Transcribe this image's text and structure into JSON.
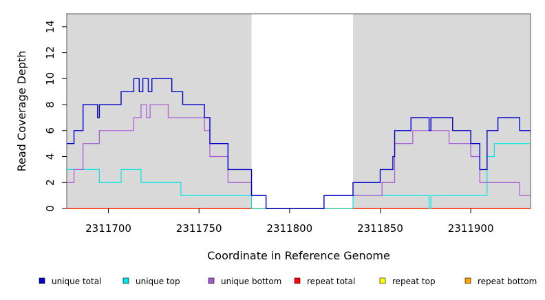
{
  "chart_data": {
    "type": "line",
    "title": "",
    "xlabel": "Coordinate in Reference Genome",
    "ylabel": "Read Coverage Depth",
    "xlim": [
      2311677,
      2311933
    ],
    "ylim": [
      0,
      15
    ],
    "x_ticks": [
      2311700,
      2311750,
      2311800,
      2311850,
      2311900
    ],
    "x_tick_labels": [
      "2311700",
      "2311750",
      "2311800",
      "2311850",
      "2311900"
    ],
    "y_ticks": [
      0,
      2,
      4,
      6,
      8,
      10,
      12,
      14
    ],
    "y_tick_labels": [
      "0",
      "2",
      "4",
      "6",
      "8",
      "10",
      "12",
      "14"
    ],
    "shaded_regions": [
      [
        2311677,
        2311779
      ],
      [
        2311835,
        2311933
      ]
    ],
    "shade_color": "#d9d9d9",
    "legend_position": "bottom",
    "series": [
      {
        "name": "unique total",
        "color": "#0000cc",
        "x": [
          2311677,
          2311681,
          2311686,
          2311694,
          2311695,
          2311707,
          2311714,
          2311717,
          2311719,
          2311722,
          2311724,
          2311735,
          2311741,
          2311753,
          2311756,
          2311766,
          2311779,
          2311787,
          2311819,
          2311835,
          2311850,
          2311857,
          2311858,
          2311867,
          2311877,
          2311878,
          2311890,
          2311900,
          2311905,
          2311909,
          2311915,
          2311927,
          2311933
        ],
        "y": [
          5,
          6,
          8,
          7,
          8,
          9,
          10,
          9,
          10,
          9,
          10,
          9,
          8,
          7,
          5,
          3,
          1,
          0,
          1,
          2,
          3,
          4,
          6,
          7,
          6,
          7,
          6,
          5,
          3,
          6,
          7,
          6,
          6
        ]
      },
      {
        "name": "unique top",
        "color": "#00e5e5",
        "x": [
          2311677,
          2311695,
          2311707,
          2311718,
          2311740,
          2311779,
          2311787,
          2311835,
          2311877,
          2311878,
          2311909,
          2311913,
          2311933
        ],
        "y": [
          3,
          2,
          3,
          2,
          1,
          0,
          0,
          1,
          0,
          1,
          4,
          5,
          5
        ]
      },
      {
        "name": "unique bottom",
        "color": "#a855d8",
        "x": [
          2311677,
          2311681,
          2311686,
          2311695,
          2311714,
          2311718,
          2311721,
          2311723,
          2311733,
          2311753,
          2311756,
          2311766,
          2311779,
          2311787,
          2311819,
          2311835,
          2311851,
          2311858,
          2311868,
          2311888,
          2311900,
          2311905,
          2311927,
          2311933
        ],
        "y": [
          2,
          3,
          5,
          6,
          7,
          8,
          7,
          8,
          7,
          6,
          4,
          2,
          1,
          0,
          1,
          1,
          2,
          5,
          6,
          5,
          4,
          2,
          1,
          1
        ]
      },
      {
        "name": "repeat total",
        "color": "#ff0000",
        "x": [
          2311677,
          2311933
        ],
        "y": [
          0,
          0
        ]
      },
      {
        "name": "repeat top",
        "color": "#ffff00",
        "x": [
          2311677,
          2311933
        ],
        "y": [
          0,
          0
        ]
      },
      {
        "name": "repeat bottom",
        "color": "#ffa500",
        "x": [
          2311677,
          2311933
        ],
        "y": [
          0,
          0
        ]
      }
    ]
  }
}
